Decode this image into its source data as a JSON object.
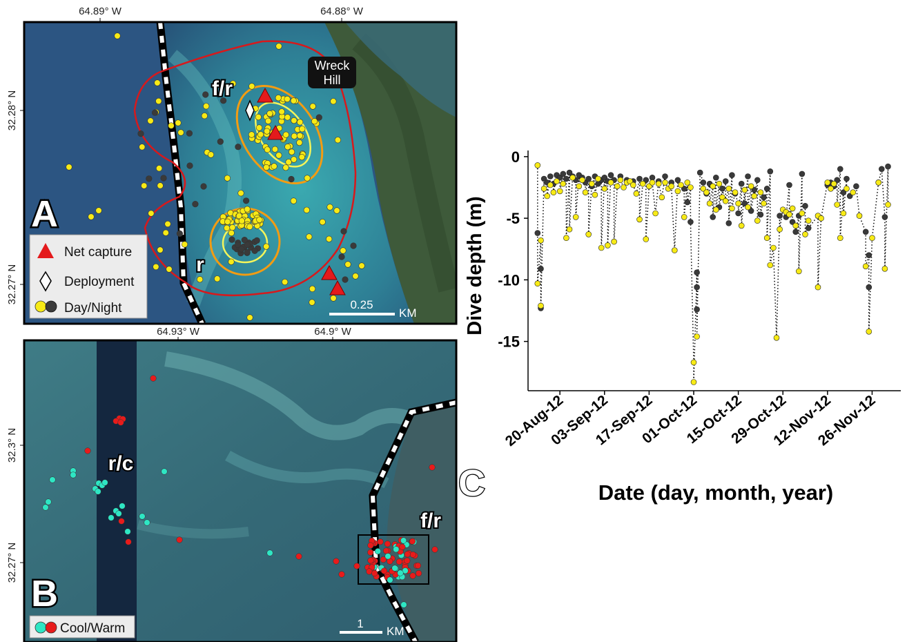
{
  "panel_a": {
    "panel_letter": "A",
    "coords": {
      "x1": "64.89° W",
      "x2": "64.88° W",
      "y1": "32.28° N",
      "y2": "32.27° N"
    },
    "zone_fr": "f/r",
    "zone_r": "r",
    "place": [
      "Wreck",
      "Hill"
    ],
    "legend": {
      "net_capture": "Net capture",
      "deployment": "Deployment",
      "day_night": "Day/Night"
    },
    "scale": "0.25",
    "scale_unit": "KM",
    "colors": {
      "day": "#f7ea16",
      "night": "#3a3a3a",
      "capture": "#e41a1c",
      "kernel_outer": "#d7191c",
      "kernel_mid": "#f39c12",
      "kernel_inner": "#f5f55a"
    }
  },
  "panel_b": {
    "panel_letter": "B",
    "coords": {
      "x1": "64.93° W",
      "x2": "64.9° W",
      "y1": "32.3° N",
      "y2": "32.27° N"
    },
    "zone_rc": "r/c",
    "zone_fr": "f/r",
    "legend": {
      "cool_warm": "Cool/Warm"
    },
    "scale": "1",
    "scale_unit": "KM",
    "colors": {
      "cool": "#2ee6c4",
      "warm": "#e81b1b"
    }
  },
  "panel_c": {
    "panel_letter": "C",
    "colors": {
      "day": "#f7ea16",
      "night": "#3a3a3a"
    }
  },
  "chart_data": {
    "type": "scatter",
    "title": "",
    "xlabel": "Date (day, month, year)",
    "ylabel": "Dive depth (m)",
    "ylim": [
      -19,
      0.5
    ],
    "yticks": [
      0,
      -5,
      -10,
      -15
    ],
    "xlim": [
      "2012-08-10",
      "2012-12-05"
    ],
    "xticks": [
      "2012-08-20",
      "2012-09-03",
      "2012-09-17",
      "2012-10-01",
      "2012-10-15",
      "2012-10-29",
      "2012-11-12",
      "2012-11-26"
    ],
    "xtick_labels": [
      "20-Aug-12",
      "03-Sep-12",
      "17-Sep-12",
      "01-Oct-12",
      "15-Oct-12",
      "29-Oct-12",
      "12-Nov-12",
      "26-Nov-12"
    ],
    "grid": false,
    "line_style": "dotted",
    "series": [
      {
        "marker": "day",
        "values": [
          [
            "2012-08-13",
            -0.7
          ],
          [
            "2012-08-13",
            -10.3
          ],
          [
            "2012-08-14",
            -12.1
          ],
          [
            "2012-08-14",
            -6.8
          ],
          [
            "2012-08-15",
            -2.6
          ],
          [
            "2012-08-16",
            -3.2
          ],
          [
            "2012-08-17",
            -2.3
          ],
          [
            "2012-08-18",
            -2.9
          ],
          [
            "2012-08-19",
            -2.0
          ],
          [
            "2012-08-20",
            -2.8
          ],
          [
            "2012-08-21",
            -2.2
          ],
          [
            "2012-08-22",
            -6.6
          ],
          [
            "2012-08-23",
            -5.9
          ],
          [
            "2012-08-24",
            -1.7
          ],
          [
            "2012-08-25",
            -4.9
          ],
          [
            "2012-08-26",
            -2.4
          ],
          [
            "2012-08-27",
            -1.9
          ],
          [
            "2012-08-28",
            -2.9
          ],
          [
            "2012-08-29",
            -6.3
          ],
          [
            "2012-08-30",
            -2.2
          ],
          [
            "2012-08-31",
            -3.1
          ],
          [
            "2012-09-01",
            -1.8
          ],
          [
            "2012-09-02",
            -7.4
          ],
          [
            "2012-09-03",
            -2.6
          ],
          [
            "2012-09-04",
            -7.2
          ],
          [
            "2012-09-05",
            -2.1
          ],
          [
            "2012-09-06",
            -6.9
          ],
          [
            "2012-09-07",
            -2.4
          ],
          [
            "2012-09-08",
            -1.9
          ],
          [
            "2012-09-09",
            -2.5
          ],
          [
            "2012-09-10",
            -2.1
          ],
          [
            "2012-09-11",
            -2.0
          ],
          [
            "2012-09-12",
            -2.3
          ],
          [
            "2012-09-13",
            -3.0
          ],
          [
            "2012-09-14",
            -5.1
          ],
          [
            "2012-09-15",
            -2.2
          ],
          [
            "2012-09-16",
            -6.7
          ],
          [
            "2012-09-17",
            -2.4
          ],
          [
            "2012-09-18",
            -2.1
          ],
          [
            "2012-09-19",
            -4.6
          ],
          [
            "2012-09-20",
            -2.2
          ],
          [
            "2012-09-21",
            -3.3
          ],
          [
            "2012-09-22",
            -2.1
          ],
          [
            "2012-09-23",
            -2.6
          ],
          [
            "2012-09-24",
            -2.4
          ],
          [
            "2012-09-25",
            -7.6
          ],
          [
            "2012-09-26",
            -2.8
          ],
          [
            "2012-09-27",
            -2.3
          ],
          [
            "2012-09-28",
            -4.9
          ],
          [
            "2012-09-29",
            -2.1
          ],
          [
            "2012-09-30",
            -2.5
          ],
          [
            "2012-10-01",
            -16.7
          ],
          [
            "2012-10-01",
            -18.3
          ],
          [
            "2012-10-02",
            -14.6
          ],
          [
            "2012-10-04",
            -2.6
          ],
          [
            "2012-10-05",
            -2.9
          ],
          [
            "2012-10-06",
            -3.8
          ],
          [
            "2012-10-07",
            -2.4
          ],
          [
            "2012-10-08",
            -4.3
          ],
          [
            "2012-10-09",
            -2.2
          ],
          [
            "2012-10-10",
            -3.3
          ],
          [
            "2012-10-11",
            -3.6
          ],
          [
            "2012-10-12",
            -2.6
          ],
          [
            "2012-10-13",
            -4.2
          ],
          [
            "2012-10-14",
            -2.9
          ],
          [
            "2012-10-15",
            -3.8
          ],
          [
            "2012-10-16",
            -5.6
          ],
          [
            "2012-10-17",
            -2.7
          ],
          [
            "2012-10-18",
            -4.1
          ],
          [
            "2012-10-19",
            -2.4
          ],
          [
            "2012-10-20",
            -3.2
          ],
          [
            "2012-10-21",
            -5.2
          ],
          [
            "2012-10-22",
            -2.9
          ],
          [
            "2012-10-23",
            -3.8
          ],
          [
            "2012-10-24",
            -6.6
          ],
          [
            "2012-10-25",
            -8.8
          ],
          [
            "2012-10-26",
            -7.4
          ],
          [
            "2012-10-27",
            -14.7
          ],
          [
            "2012-10-28",
            -5.9
          ],
          [
            "2012-10-29",
            -4.3
          ],
          [
            "2012-10-30",
            -4.5
          ],
          [
            "2012-10-31",
            -4.7
          ],
          [
            "2012-11-01",
            -4.2
          ],
          [
            "2012-11-02",
            -5.6
          ],
          [
            "2012-11-03",
            -9.3
          ],
          [
            "2012-11-04",
            -4.6
          ],
          [
            "2012-11-05",
            -6.3
          ],
          [
            "2012-11-06",
            -5.2
          ],
          [
            "2012-11-09",
            -10.6
          ],
          [
            "2012-11-09",
            -4.8
          ],
          [
            "2012-11-10",
            -5.0
          ],
          [
            "2012-11-12",
            -2.1
          ],
          [
            "2012-11-13",
            -2.6
          ],
          [
            "2012-11-14",
            -2.2
          ],
          [
            "2012-11-15",
            -3.9
          ],
          [
            "2012-11-16",
            -6.6
          ],
          [
            "2012-11-17",
            -4.6
          ],
          [
            "2012-11-18",
            -2.6
          ],
          [
            "2012-11-20",
            -2.9
          ],
          [
            "2012-11-22",
            -4.8
          ],
          [
            "2012-11-24",
            -8.9
          ],
          [
            "2012-11-25",
            -14.2
          ],
          [
            "2012-11-26",
            -6.6
          ],
          [
            "2012-11-28",
            -2.1
          ],
          [
            "2012-11-30",
            -9.1
          ],
          [
            "2012-12-01",
            -3.9
          ]
        ]
      },
      {
        "marker": "night",
        "values": [
          [
            "2012-08-13",
            -6.2
          ],
          [
            "2012-08-14",
            -9.1
          ],
          [
            "2012-08-14",
            -12.3
          ],
          [
            "2012-08-15",
            -1.8
          ],
          [
            "2012-08-16",
            -2.1
          ],
          [
            "2012-08-17",
            -1.6
          ],
          [
            "2012-08-18",
            -2.2
          ],
          [
            "2012-08-19",
            -1.5
          ],
          [
            "2012-08-20",
            -1.7
          ],
          [
            "2012-08-21",
            -1.4
          ],
          [
            "2012-08-22",
            -1.8
          ],
          [
            "2012-08-23",
            -1.3
          ],
          [
            "2012-08-24",
            -1.6
          ],
          [
            "2012-08-25",
            -1.9
          ],
          [
            "2012-08-26",
            -1.5
          ],
          [
            "2012-08-27",
            -1.7
          ],
          [
            "2012-08-28",
            -2.1
          ],
          [
            "2012-08-29",
            -1.8
          ],
          [
            "2012-08-30",
            -2.4
          ],
          [
            "2012-08-31",
            -1.6
          ],
          [
            "2012-09-01",
            -2.2
          ],
          [
            "2012-09-02",
            -1.9
          ],
          [
            "2012-09-03",
            -1.7
          ],
          [
            "2012-09-04",
            -2.0
          ],
          [
            "2012-09-05",
            -1.5
          ],
          [
            "2012-09-06",
            -1.9
          ],
          [
            "2012-09-08",
            -1.6
          ],
          [
            "2012-09-10",
            -1.9
          ],
          [
            "2012-09-12",
            -2.0
          ],
          [
            "2012-09-14",
            -1.8
          ],
          [
            "2012-09-16",
            -1.9
          ],
          [
            "2012-09-18",
            -1.7
          ],
          [
            "2012-09-20",
            -2.0
          ],
          [
            "2012-09-22",
            -1.6
          ],
          [
            "2012-09-24",
            -2.1
          ],
          [
            "2012-09-26",
            -1.9
          ],
          [
            "2012-09-28",
            -2.6
          ],
          [
            "2012-09-29",
            -3.7
          ],
          [
            "2012-09-30",
            -5.3
          ],
          [
            "2012-10-02",
            -9.4
          ],
          [
            "2012-10-02",
            -10.6
          ],
          [
            "2012-10-02",
            -12.4
          ],
          [
            "2012-10-03",
            -1.3
          ],
          [
            "2012-10-04",
            -2.1
          ],
          [
            "2012-10-05",
            -3.0
          ],
          [
            "2012-10-06",
            -2.2
          ],
          [
            "2012-10-07",
            -4.9
          ],
          [
            "2012-10-08",
            -1.7
          ],
          [
            "2012-10-09",
            -4.1
          ],
          [
            "2012-10-10",
            -2.6
          ],
          [
            "2012-10-11",
            -2.0
          ],
          [
            "2012-10-12",
            -5.4
          ],
          [
            "2012-10-13",
            -1.5
          ],
          [
            "2012-10-14",
            -3.0
          ],
          [
            "2012-10-15",
            -4.6
          ],
          [
            "2012-10-16",
            -2.2
          ],
          [
            "2012-10-17",
            -3.8
          ],
          [
            "2012-10-18",
            -1.6
          ],
          [
            "2012-10-19",
            -4.4
          ],
          [
            "2012-10-20",
            -2.7
          ],
          [
            "2012-10-21",
            -1.9
          ],
          [
            "2012-10-22",
            -4.7
          ],
          [
            "2012-10-23",
            -3.3
          ],
          [
            "2012-10-24",
            -2.6
          ],
          [
            "2012-10-25",
            -1.2
          ],
          [
            "2012-10-28",
            -4.8
          ],
          [
            "2012-10-30",
            -4.9
          ],
          [
            "2012-10-31",
            -2.3
          ],
          [
            "2012-11-01",
            -5.3
          ],
          [
            "2012-11-02",
            -6.1
          ],
          [
            "2012-11-03",
            -4.8
          ],
          [
            "2012-11-04",
            -1.4
          ],
          [
            "2012-11-05",
            -4.0
          ],
          [
            "2012-11-06",
            -5.8
          ],
          [
            "2012-11-12",
            -2.3
          ],
          [
            "2012-11-13",
            -2.1
          ],
          [
            "2012-11-14",
            -2.4
          ],
          [
            "2012-11-15",
            -1.9
          ],
          [
            "2012-11-16",
            -1.0
          ],
          [
            "2012-11-17",
            -2.9
          ],
          [
            "2012-11-18",
            -1.8
          ],
          [
            "2012-11-19",
            -3.2
          ],
          [
            "2012-11-21",
            -2.4
          ],
          [
            "2012-11-24",
            -6.1
          ],
          [
            "2012-11-25",
            -8.0
          ],
          [
            "2012-11-25",
            -10.6
          ],
          [
            "2012-11-28",
            -2.1
          ],
          [
            "2012-11-29",
            -1.0
          ],
          [
            "2012-11-30",
            -4.9
          ],
          [
            "2012-12-01",
            -0.8
          ]
        ]
      }
    ]
  }
}
